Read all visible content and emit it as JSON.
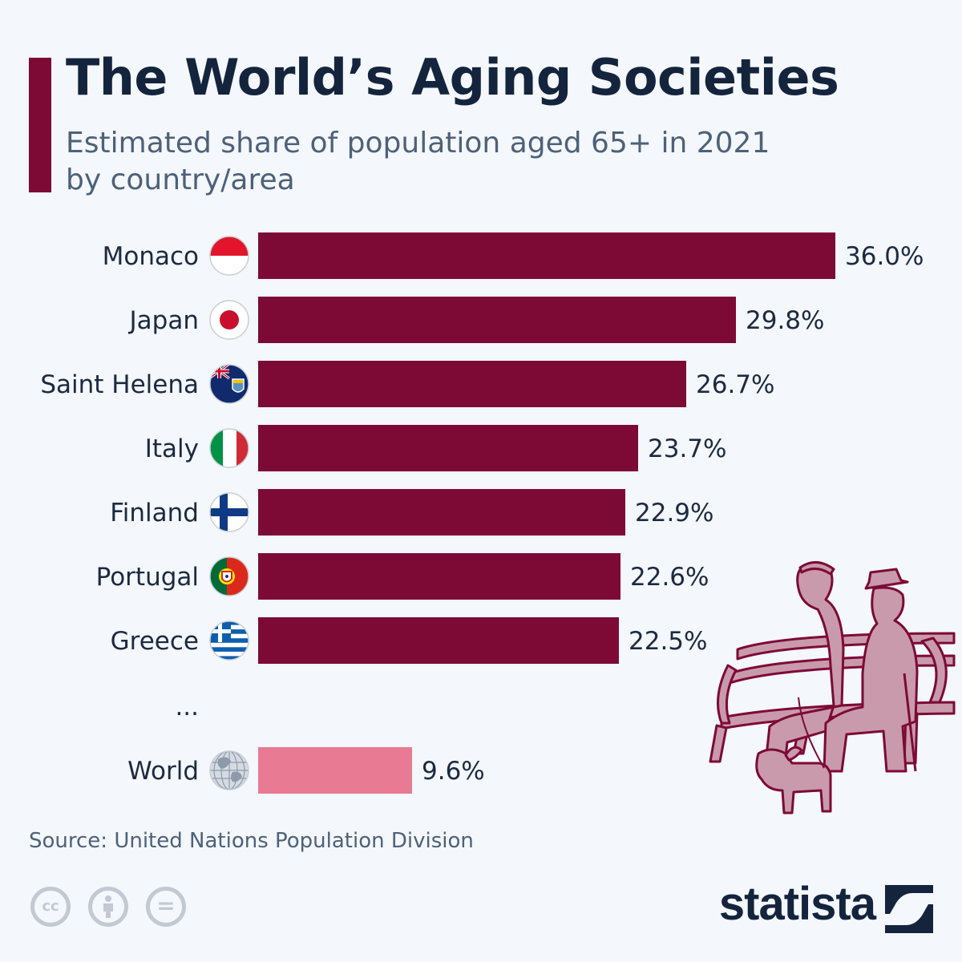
{
  "header": {
    "title": "The World’s Aging Societies",
    "subtitle_line1": "Estimated share of population aged 65+ in 2021",
    "subtitle_line2": "by country/area"
  },
  "chart_data": {
    "type": "bar",
    "orientation": "horizontal",
    "title": "The World’s Aging Societies",
    "subtitle": "Estimated share of population aged 65+ in 2021 by country/area",
    "categories": [
      "Monaco",
      "Japan",
      "Saint Helena",
      "Italy",
      "Finland",
      "Portugal",
      "Greece",
      "World"
    ],
    "values": [
      36.0,
      29.8,
      26.7,
      23.7,
      22.9,
      22.6,
      22.5,
      9.6
    ],
    "value_labels": [
      "36.0%",
      "29.8%",
      "26.7%",
      "23.7%",
      "22.9%",
      "22.6%",
      "22.5%",
      "9.6%"
    ],
    "unit": "%",
    "gap_marker": "...",
    "xlim": [
      0,
      36
    ],
    "grid": false,
    "legend": "none",
    "colors": {
      "bar": "#7d0a35",
      "world_bar": "#e87a93"
    }
  },
  "flags": [
    "monaco-flag-icon",
    "japan-flag-icon",
    "saint-helena-flag-icon",
    "italy-flag-icon",
    "finland-flag-icon",
    "portugal-flag-icon",
    "greece-flag-icon",
    "globe-icon"
  ],
  "footer": {
    "source": "Source: United Nations Population Division",
    "license_icons": [
      "cc-icon",
      "by-icon",
      "nd-icon"
    ],
    "license_glyphs": {
      "cc": "cc",
      "nd": "="
    },
    "brand": "statista"
  },
  "colors": {
    "accent": "#7d0a35",
    "title": "#14243d",
    "subtitle": "#4d6179",
    "background": "#f4f7fb",
    "illustration": "#c99aac"
  }
}
